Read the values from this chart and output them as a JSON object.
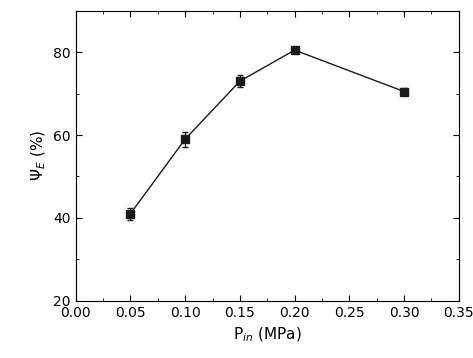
{
  "x": [
    0.05,
    0.1,
    0.15,
    0.2,
    0.3
  ],
  "y": [
    41.0,
    59.0,
    73.0,
    80.5,
    70.5
  ],
  "yerr": [
    1.5,
    1.8,
    1.5,
    0.5,
    0.8
  ],
  "xlabel": "P$_{in}$ (MPa)",
  "ylabel": "Ψ$_{E}$ (%)",
  "xlim": [
    0.0,
    0.35
  ],
  "ylim": [
    20,
    90
  ],
  "xticks": [
    0.0,
    0.05,
    0.1,
    0.15,
    0.2,
    0.25,
    0.3,
    0.35
  ],
  "yticks": [
    20,
    40,
    60,
    80
  ],
  "marker": "s",
  "markersize": 6,
  "linewidth": 1.0,
  "color": "#1a1a1a",
  "capsize": 2.5,
  "elinewidth": 0.9,
  "background_color": "#ffffff",
  "tick_labelsize": 10,
  "xlabel_fontsize": 11,
  "ylabel_fontsize": 11
}
